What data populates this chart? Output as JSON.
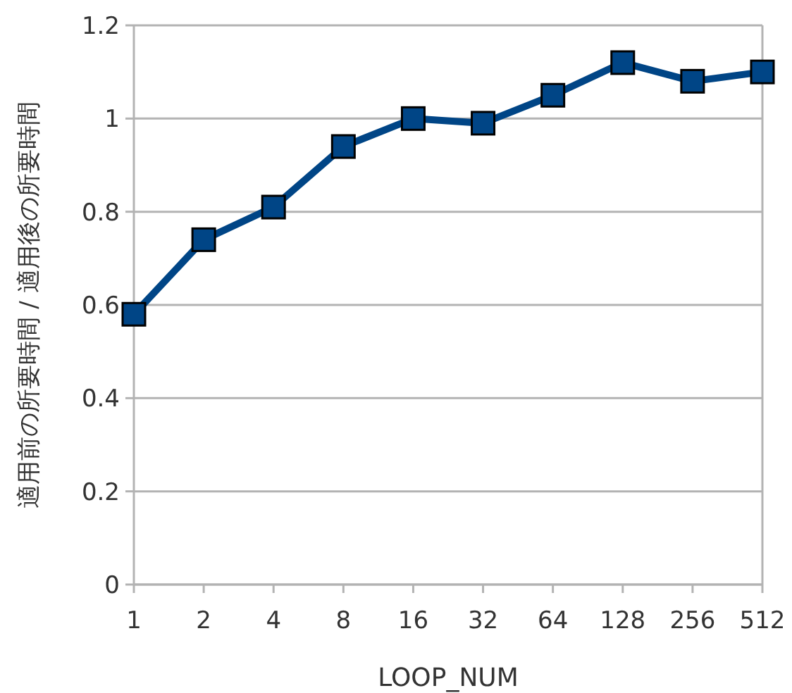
{
  "chart_data": {
    "type": "line",
    "xlabel": "LOOP_NUM",
    "ylabel": "適用前の所要時間 / 適用後の所要時間",
    "categories": [
      "1",
      "2",
      "4",
      "8",
      "16",
      "32",
      "64",
      "128",
      "256",
      "512"
    ],
    "series": [
      {
        "color": "#004586",
        "values": [
          0.58,
          0.74,
          0.81,
          0.94,
          1.0,
          0.99,
          1.05,
          1.12,
          1.08,
          1.1
        ]
      }
    ],
    "ylim": [
      0,
      1.2
    ],
    "yticks": [
      0,
      0.2,
      0.4,
      0.6,
      0.8,
      1,
      1.2
    ],
    "grid": "y",
    "marker": "square",
    "line_style": "solid"
  }
}
